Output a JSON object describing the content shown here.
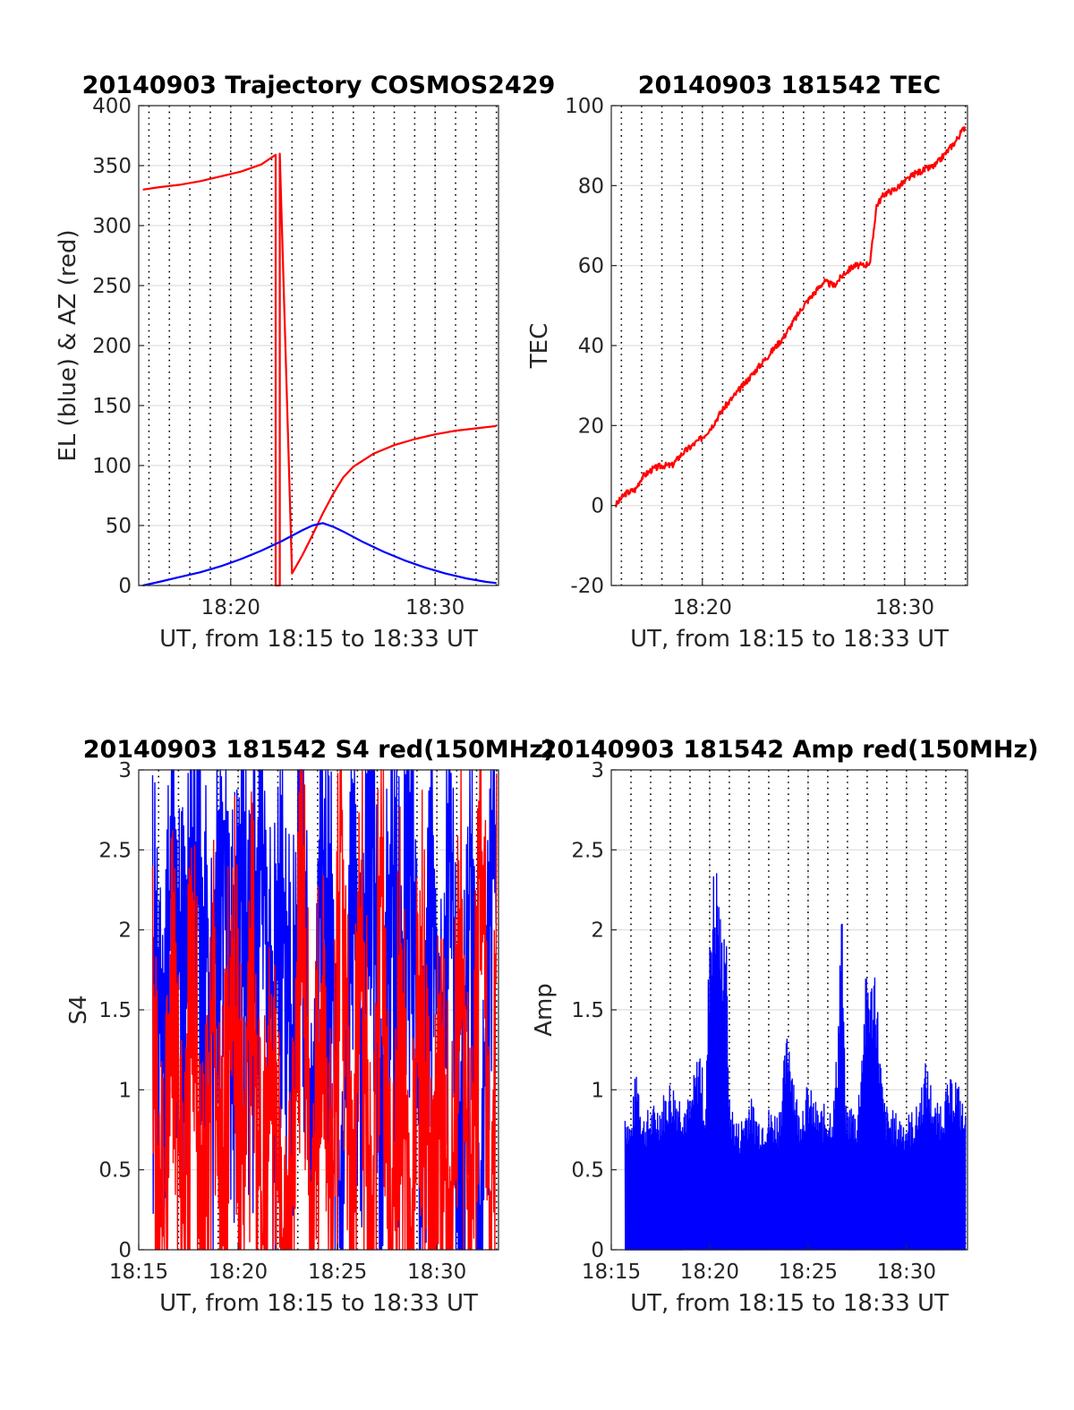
{
  "figure": {
    "background": "#ffffff",
    "grid_color": "#dedede",
    "axis_color": "#262626"
  },
  "chart_data": [
    {
      "type": "line",
      "title": "20140903 Trajectory COSMOS2429",
      "xlabel": "UT, from 18:15 to 18:33 UT",
      "ylabel": "EL (blue) & AZ (red)",
      "xlim": [
        15.5,
        33.1
      ],
      "ylim": [
        0,
        400
      ],
      "xticks": [
        20,
        30
      ],
      "xticklabels": [
        "18:20",
        "18:30"
      ],
      "yticks": [
        0,
        50,
        100,
        150,
        200,
        250,
        300,
        350,
        400
      ],
      "yticklabels": [
        "0",
        "50",
        "100",
        "150",
        "200",
        "250",
        "300",
        "350",
        "400"
      ],
      "dotted_vlines": [
        16,
        17,
        18,
        19,
        20,
        21,
        22,
        23,
        24,
        25,
        26,
        27,
        28,
        29,
        30,
        31,
        32,
        33
      ],
      "grid": true,
      "series": [
        {
          "color": "#ff0000",
          "x": [
            15.7,
            16.5,
            17.5,
            18.5,
            19.5,
            20.5,
            21.5,
            22.2,
            22.2,
            22.4,
            22.4,
            23.0,
            23.5,
            24.0,
            24.5,
            25.0,
            25.5,
            26.0,
            27.0,
            28.0,
            29.0,
            30.0,
            31.0,
            32.0,
            33.0
          ],
          "y": [
            330,
            332,
            334,
            337,
            341,
            345,
            351,
            359,
            0,
            0,
            360,
            10,
            25,
            42,
            60,
            76,
            90,
            99,
            110,
            117,
            122,
            126,
            129,
            131,
            133
          ]
        },
        {
          "color": "#0000ff",
          "x": [
            15.7,
            16.5,
            17.5,
            18.5,
            19.5,
            20.5,
            21.5,
            22.5,
            23.5,
            24.0,
            24.5,
            25.0,
            25.5,
            26.5,
            27.5,
            28.5,
            29.5,
            30.5,
            31.5,
            32.5,
            33.0
          ],
          "y": [
            0,
            3,
            7,
            11,
            16,
            22,
            29,
            37,
            46,
            50,
            52,
            49,
            45,
            36,
            28,
            21,
            15,
            10,
            6,
            3,
            2
          ]
        }
      ]
    },
    {
      "type": "line",
      "title": "20140903 181542 TEC",
      "xlabel": "UT, from 18:15 to 18:33 UT",
      "ylabel": "TEC",
      "xlim": [
        15.5,
        33.1
      ],
      "ylim": [
        -20,
        100
      ],
      "xticks": [
        20,
        30
      ],
      "xticklabels": [
        "18:20",
        "18:30"
      ],
      "yticks": [
        -20,
        0,
        20,
        40,
        60,
        80,
        100
      ],
      "yticklabels": [
        "-20",
        "0",
        "20",
        "40",
        "60",
        "80",
        "100"
      ],
      "dotted_vlines": [
        16,
        17,
        18,
        19,
        20,
        21,
        22,
        23,
        24,
        25,
        26,
        27,
        28,
        29,
        30,
        31,
        32,
        33
      ],
      "grid": true,
      "series": [
        {
          "color": "#ff0000",
          "x": [
            15.7,
            16.2,
            16.7,
            17.0,
            17.5,
            18.0,
            18.5,
            19.0,
            19.5,
            20.0,
            20.5,
            21.0,
            21.5,
            22.0,
            22.5,
            23.0,
            23.5,
            24.0,
            24.5,
            25.0,
            25.5,
            26.0,
            26.5,
            27.0,
            27.5,
            28.0,
            28.3,
            28.6,
            29.0,
            29.5,
            30.0,
            30.5,
            31.0,
            31.5,
            32.0,
            32.5,
            33.0
          ],
          "y": [
            0,
            3,
            4,
            7,
            9,
            10,
            10,
            13,
            15,
            17,
            20,
            24,
            27,
            30,
            33,
            36,
            39,
            42,
            46,
            50,
            53,
            56,
            55,
            58,
            60,
            60,
            61,
            75,
            78,
            79,
            81,
            83,
            84,
            85,
            88,
            91,
            95
          ]
        }
      ]
    },
    {
      "type": "line",
      "title": "20140903 181542 S4 red(150MHz)",
      "xlabel": "UT, from 18:15 to 18:33 UT",
      "ylabel": "S4",
      "xlim": [
        15.0,
        33.1
      ],
      "ylim": [
        0,
        3
      ],
      "xticks": [
        15,
        20,
        25,
        30
      ],
      "xticklabels": [
        "18:15",
        "18:20",
        "18:25",
        "18:30"
      ],
      "yticks": [
        0,
        0.5,
        1,
        1.5,
        2,
        2.5,
        3
      ],
      "yticklabels": [
        "0",
        "0.5",
        "1",
        "1.5",
        "2",
        "2.5",
        "3"
      ],
      "dotted_vlines": [
        16,
        17,
        18,
        19,
        20,
        21,
        22,
        23,
        24,
        25,
        26,
        27,
        28,
        29,
        30,
        31,
        32,
        33
      ],
      "grid": true,
      "series": [
        {
          "color": "#0000ff",
          "x": [
            15.7,
            16.2,
            16.7,
            17.2,
            17.7,
            18.2,
            18.7,
            19.2,
            19.7,
            20.2,
            20.7,
            21.2,
            21.7,
            22.2,
            22.7,
            23.2,
            23.7,
            24.2,
            24.7,
            25.2,
            25.7,
            26.2,
            26.7,
            27.2,
            27.7,
            28.2,
            28.7,
            29.2,
            29.7,
            30.2,
            30.7,
            31.2,
            31.7,
            32.2,
            32.7,
            33.0
          ],
          "y": [
            1.9,
            1.6,
            2.4,
            1.7,
            2.6,
            2.2,
            1.5,
            2.8,
            1.7,
            2.3,
            1.9,
            2.7,
            1.4,
            2.5,
            1.2,
            2.9,
            0.4,
            2.6,
            1.8,
            0.2,
            2.7,
            1.3,
            2.9,
            0.8,
            2.5,
            1.6,
            2.9,
            0.5,
            2.3,
            1.4,
            2.8,
            0.3,
            2.6,
            0.0,
            2.7,
            2.1
          ]
        },
        {
          "color": "#ff0000",
          "x": [
            15.7,
            16.2,
            16.7,
            17.2,
            17.7,
            18.2,
            18.7,
            19.2,
            19.7,
            20.2,
            20.7,
            21.2,
            21.7,
            22.2,
            22.7,
            23.2,
            23.7,
            24.2,
            24.7,
            25.2,
            25.7,
            26.2,
            26.7,
            27.2,
            27.7,
            28.2,
            28.7,
            29.2,
            29.7,
            30.2,
            30.7,
            31.2,
            31.7,
            32.2,
            32.7,
            33.0
          ],
          "y": [
            1.3,
            0.0,
            1.7,
            0.2,
            1.9,
            0.0,
            1.6,
            0.3,
            2.0,
            0.6,
            1.8,
            0.0,
            1.2,
            0.0,
            0.0,
            2.9,
            0.0,
            1.7,
            0.0,
            2.8,
            0.1,
            2.2,
            0.0,
            2.6,
            0.0,
            1.8,
            0.0,
            2.0,
            0.0,
            1.2,
            0.0,
            2.1,
            0.0,
            2.9,
            0.0,
            2.0
          ]
        }
      ]
    },
    {
      "type": "line",
      "title": "20140903 181542 Amp red(150MHz)",
      "xlabel": "UT, from 18:15 to 18:33 UT",
      "ylabel": "Amp",
      "xlim": [
        15.0,
        33.1
      ],
      "ylim": [
        0,
        3
      ],
      "xticks": [
        15,
        20,
        25,
        30
      ],
      "xticklabels": [
        "18:15",
        "18:20",
        "18:25",
        "18:30"
      ],
      "yticks": [
        0,
        0.5,
        1,
        1.5,
        2,
        2.5,
        3
      ],
      "yticklabels": [
        "0",
        "0.5",
        "1",
        "1.5",
        "2",
        "2.5",
        "3"
      ],
      "dotted_vlines": [
        16,
        17,
        18,
        19,
        20,
        21,
        22,
        23,
        24,
        25,
        26,
        27,
        28,
        29,
        30,
        31,
        32,
        33
      ],
      "grid": true,
      "series": [
        {
          "color": "#0000ff",
          "x": [
            15.7,
            16.0,
            16.3,
            16.6,
            17.0,
            17.5,
            18.0,
            18.5,
            19.0,
            19.5,
            19.8,
            20.0,
            20.2,
            20.4,
            20.6,
            20.8,
            21.0,
            21.5,
            22.0,
            22.5,
            23.0,
            23.5,
            24.0,
            24.5,
            25.0,
            25.5,
            26.0,
            26.3,
            26.5,
            26.7,
            26.9,
            27.2,
            27.5,
            28.0,
            28.2,
            28.4,
            28.6,
            28.8,
            29.0,
            29.5,
            30.0,
            30.5,
            31.0,
            31.5,
            32.0,
            32.5,
            33.0
          ],
          "y": [
            0.94,
            0.8,
            1.22,
            0.85,
            0.9,
            0.95,
            1.08,
            1.0,
            0.95,
            1.32,
            0.9,
            2.2,
            2.4,
            2.47,
            2.0,
            2.28,
            0.95,
            0.8,
            0.98,
            0.86,
            0.9,
            0.88,
            1.45,
            0.9,
            1.05,
            0.9,
            0.92,
            0.95,
            1.35,
            2.33,
            0.9,
            0.93,
            0.88,
            1.85,
            1.7,
            1.88,
            1.4,
            1.0,
            0.9,
            0.86,
            0.85,
            0.9,
            1.2,
            0.9,
            1.02,
            1.12,
            0.86
          ]
        }
      ]
    }
  ]
}
